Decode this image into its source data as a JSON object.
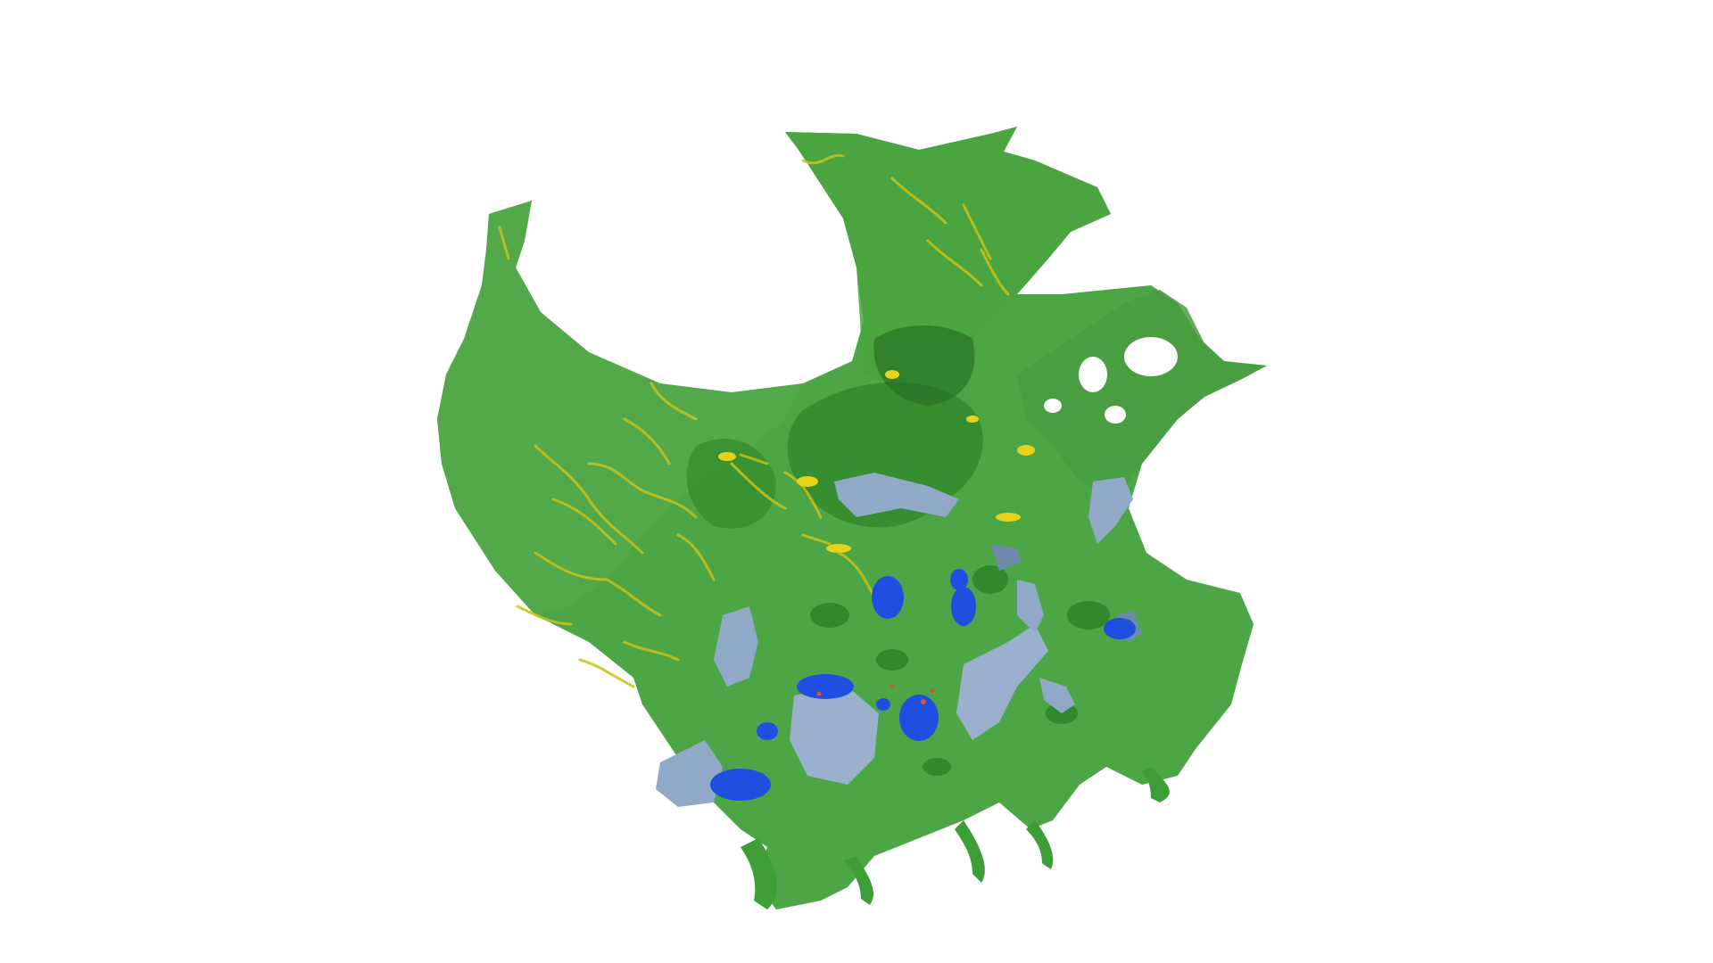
{
  "scene": {
    "background": "#ffffff",
    "colors": {
      "membrane_green": "#3d9e35",
      "membrane_green_dark": "#2f7f2a",
      "membrane_green_light": "#55b04a",
      "mitochondria_yellow": "#c8c21a",
      "mitochondria_yellow_bright": "#e6d21a",
      "nucleus_blue": "#1f4fe0",
      "vesicle_lightblue": "#8fa9c7",
      "vesicle_lightblue_dark": "#6f8aa8",
      "marker_red": "#e0502a"
    },
    "objects": [
      "cell-membrane-surface",
      "mitochondria-network",
      "blue-organelles",
      "light-blue-vesicles",
      "red-markers"
    ]
  }
}
